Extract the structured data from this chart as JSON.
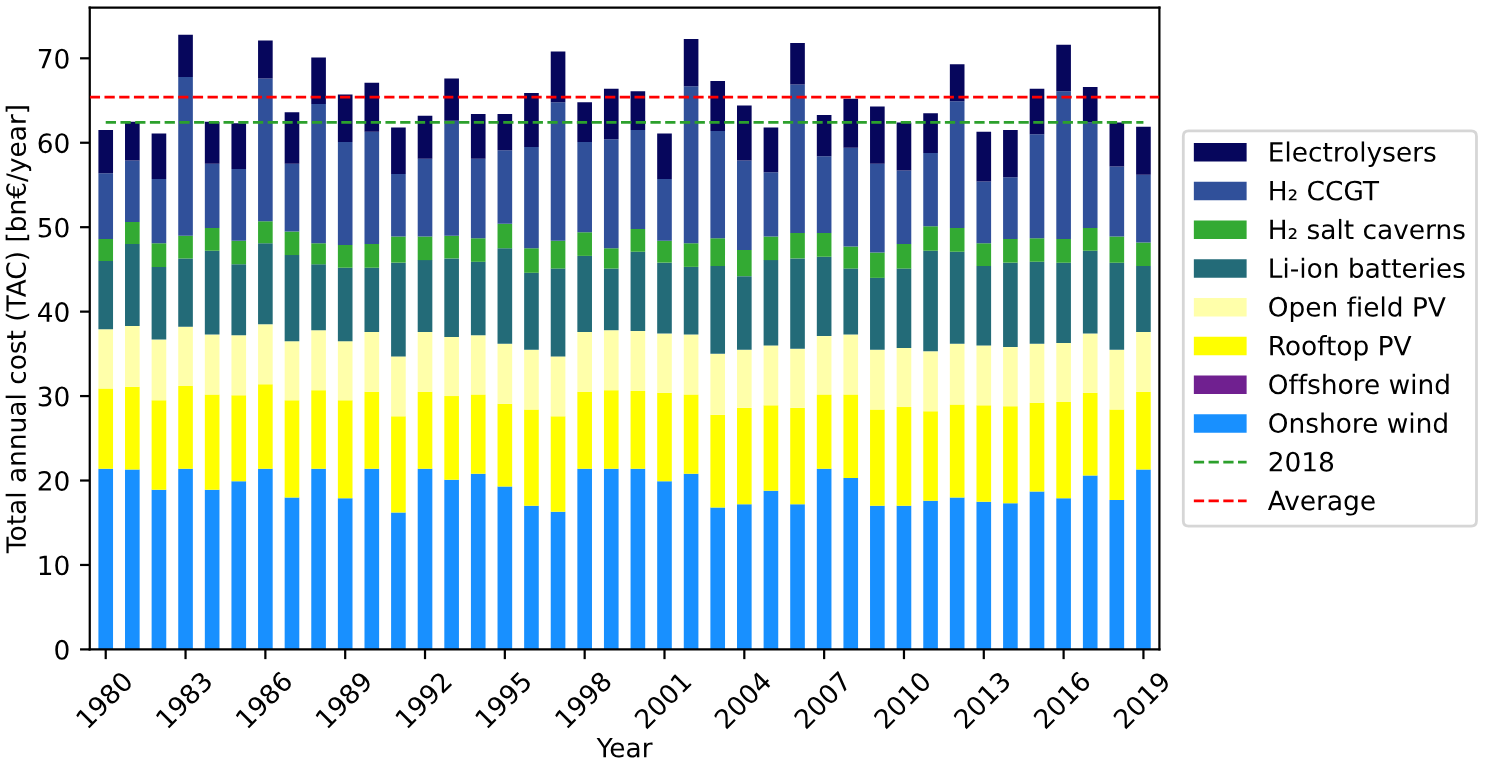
{
  "chart_data": {
    "type": "bar",
    "stacked": true,
    "xlabel": "Year",
    "ylabel": "Total annual cost (TAC) [bn€/year]",
    "categories": [
      "1980",
      null,
      null,
      "1983",
      null,
      null,
      "1986",
      null,
      null,
      "1989",
      null,
      null,
      "1992",
      null,
      null,
      "1995",
      null,
      null,
      "1998",
      null,
      null,
      "2001",
      null,
      null,
      "2004",
      null,
      null,
      "2007",
      null,
      null,
      "2010",
      null,
      null,
      "2013",
      null,
      null,
      "2016",
      null,
      null,
      "2019"
    ],
    "series": [
      {
        "name": "Onshore wind",
        "color": "#1890ff",
        "values": [
          21.4,
          21.3,
          18.9,
          21.4,
          18.9,
          19.9,
          21.4,
          18.0,
          21.4,
          17.9,
          21.4,
          16.2,
          21.4,
          20.1,
          20.8,
          19.3,
          17.0,
          16.3,
          21.4,
          21.4,
          21.4,
          19.9,
          20.8,
          16.8,
          17.2,
          18.8,
          17.2,
          21.4,
          20.3,
          17.0,
          17.0,
          17.6,
          18.0,
          17.5,
          17.3,
          18.7,
          17.9,
          20.6,
          17.7,
          21.3
        ]
      },
      {
        "name": "Offshore wind",
        "color": "#702090",
        "values": [
          0,
          0,
          0,
          0,
          0,
          0,
          0,
          0,
          0,
          0,
          0,
          0,
          0,
          0,
          0,
          0,
          0,
          0,
          0,
          0,
          0,
          0,
          0,
          0,
          0,
          0,
          0,
          0,
          0,
          0,
          0,
          0,
          0,
          0,
          0,
          0,
          0,
          0,
          0,
          0
        ]
      },
      {
        "name": "Rooftop PV",
        "color": "#ffff00",
        "values": [
          9.5,
          9.8,
          10.6,
          9.8,
          11.3,
          10.2,
          10.0,
          11.5,
          9.3,
          11.6,
          9.1,
          11.4,
          9.1,
          9.9,
          9.4,
          9.8,
          11.4,
          11.3,
          9.1,
          9.3,
          9.2,
          10.5,
          9.4,
          11.0,
          11.4,
          10.1,
          11.4,
          8.8,
          9.9,
          11.4,
          11.7,
          10.6,
          11.0,
          11.4,
          11.5,
          10.5,
          11.4,
          9.8,
          10.7,
          9.2
        ]
      },
      {
        "name": "Open field PV",
        "color": "#ffffaa",
        "values": [
          7.0,
          7.2,
          7.2,
          7.0,
          7.1,
          7.1,
          7.1,
          7.0,
          7.1,
          7.0,
          7.1,
          7.1,
          7.1,
          7.0,
          7.0,
          7.1,
          7.1,
          7.1,
          7.1,
          7.1,
          7.1,
          7.0,
          7.1,
          7.2,
          6.9,
          7.1,
          7.0,
          6.9,
          7.1,
          7.1,
          7.0,
          7.1,
          7.2,
          7.1,
          7.0,
          7.0,
          7.0,
          7.0,
          7.1,
          7.1
        ]
      },
      {
        "name": "Li-ion batteries",
        "color": "#236b78",
        "values": [
          8.1,
          9.7,
          8.6,
          8.1,
          9.9,
          8.4,
          9.6,
          10.2,
          7.8,
          8.7,
          7.6,
          11.1,
          8.5,
          9.3,
          8.7,
          11.3,
          9.1,
          10.4,
          9.0,
          7.3,
          9.4,
          8.4,
          8.0,
          10.4,
          8.7,
          10.1,
          10.7,
          9.4,
          7.8,
          8.5,
          9.4,
          11.9,
          10.9,
          9.4,
          10.0,
          9.7,
          9.5,
          9.8,
          10.3,
          7.8
        ]
      },
      {
        "name": "H₂ salt caverns",
        "color": "#33aa33",
        "values": [
          2.6,
          2.6,
          2.8,
          2.7,
          2.7,
          2.8,
          2.6,
          2.8,
          2.5,
          2.7,
          2.8,
          3.1,
          2.8,
          2.7,
          2.8,
          2.9,
          2.9,
          3.3,
          2.8,
          2.4,
          2.7,
          2.6,
          2.8,
          3.3,
          3.1,
          2.8,
          3.0,
          2.8,
          2.6,
          3.0,
          2.9,
          2.9,
          2.8,
          2.7,
          2.8,
          2.8,
          2.8,
          2.7,
          3.1,
          2.8
        ]
      },
      {
        "name": "H₂ CCGT",
        "color": "#30509a",
        "values": [
          7.8,
          7.3,
          7.6,
          18.8,
          7.6,
          8.5,
          16.9,
          8.0,
          16.5,
          12.2,
          13.3,
          7.4,
          9.2,
          13.6,
          9.4,
          8.7,
          12.0,
          16.4,
          10.7,
          12.9,
          11.7,
          7.3,
          18.6,
          12.7,
          10.6,
          7.6,
          17.6,
          9.1,
          11.7,
          10.5,
          8.7,
          8.7,
          15.0,
          7.3,
          7.3,
          12.3,
          17.5,
          12.5,
          8.3,
          8.0
        ]
      },
      {
        "name": "Electrolysers",
        "color": "#06065c",
        "values": [
          5.1,
          4.6,
          5.4,
          5.0,
          5.0,
          5.4,
          4.5,
          6.1,
          5.5,
          5.6,
          5.8,
          5.5,
          5.1,
          5.0,
          5.3,
          4.3,
          6.4,
          6.0,
          4.7,
          6.0,
          4.6,
          5.4,
          5.6,
          5.9,
          6.5,
          5.3,
          4.9,
          4.9,
          5.8,
          6.8,
          5.7,
          4.7,
          4.4,
          5.9,
          5.6,
          5.4,
          5.5,
          4.2,
          5.2,
          5.7
        ]
      },
      {
        "name": "2018",
        "type": "line",
        "color": "#2ca02c",
        "line_style": "dashed",
        "values": [
          62.4,
          62.4,
          62.4,
          62.4,
          62.4,
          62.4,
          62.4,
          62.4,
          62.4,
          62.4,
          62.4,
          62.4,
          62.4,
          62.4,
          62.4,
          62.4,
          62.4,
          62.4,
          62.4,
          62.4,
          62.4,
          62.4,
          62.4,
          62.4,
          62.4,
          62.4,
          62.4,
          62.4,
          62.4,
          62.4,
          62.4,
          62.4,
          62.4,
          62.4,
          62.4,
          62.4,
          62.4,
          62.4,
          62.4,
          62.4
        ]
      }
    ],
    "ref_lines": [
      {
        "axis": "y",
        "value": 65.4,
        "label": "Average",
        "color": "#ff0000",
        "line_style": "dashed"
      }
    ],
    "ylim": [
      0,
      76
    ],
    "yticks": [
      0,
      10,
      20,
      30,
      40,
      50,
      60,
      70
    ],
    "grid": false,
    "legend": "right"
  }
}
